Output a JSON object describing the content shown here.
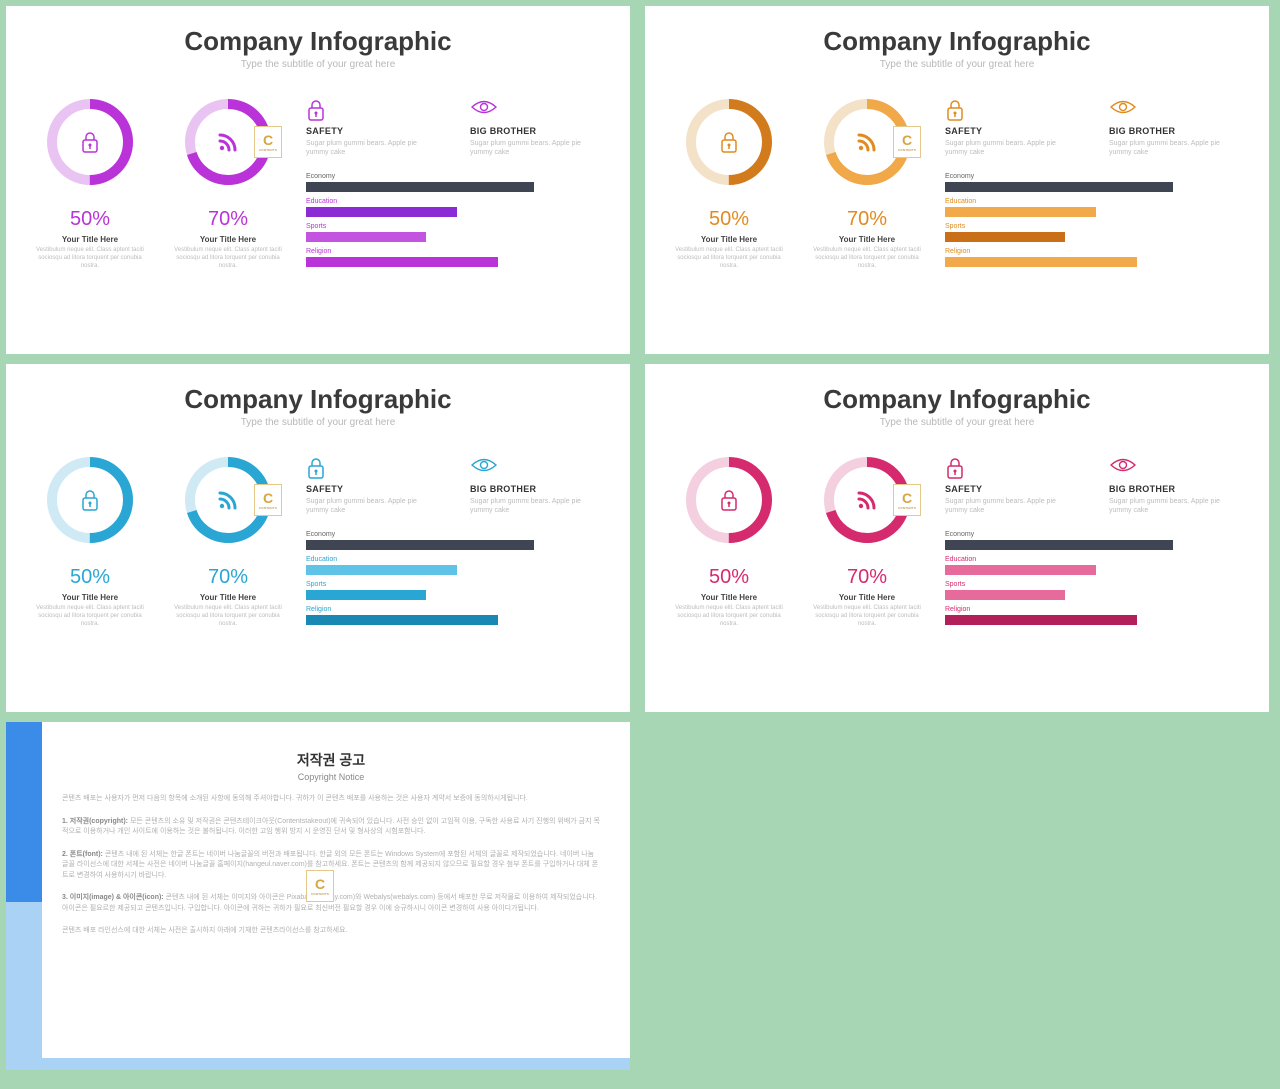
{
  "background_color": "#a6d6b4",
  "slide_title": "Company Infographic",
  "slide_subtitle": "Type the subtitle of your great here",
  "donut_caption": "Your Title Here",
  "donut_desc": "Vestibulum neque elit. Class aptent taciti sociosqu ad litora torquent per conubia nostra.",
  "safety": {
    "title": "SAFETY",
    "desc": "Sugar plum gummi bears. Apple pie yummy cake"
  },
  "bigbrother": {
    "title": "BIG BROTHER",
    "desc": "Sugar plum gummi bears. Apple pie yummy cake"
  },
  "donut_values": {
    "a": 50,
    "b": 70
  },
  "bar_categories": [
    "Economy",
    "Education",
    "Sports",
    "Religion"
  ],
  "bar_values": [
    95,
    63,
    50,
    80
  ],
  "bar_label_color": "#8a8a8a",
  "dark_bar_color": "#3f4553",
  "variants": [
    {
      "accent": "#b933d9",
      "accent_light": "#e9c4f2",
      "donut_colors": {
        "a": "#b933d9",
        "b": "#b933d9"
      },
      "pct_color": "#b933d9",
      "bar_colors": [
        "#3f4553",
        "#8a2bd6",
        "#c254e0",
        "#b933d9"
      ]
    },
    {
      "accent": "#e08b1f",
      "accent_light": "#f4e2c8",
      "donut_colors": {
        "a": "#d27b1c",
        "b": "#f0a848"
      },
      "pct_color": "#e08b1f",
      "bar_colors": [
        "#3f4553",
        "#f2a94c",
        "#c96f18",
        "#f2a94c"
      ]
    },
    {
      "accent": "#2aa6d4",
      "accent_light": "#cfeaf4",
      "donut_colors": {
        "a": "#2aa6d4",
        "b": "#2aa6d4"
      },
      "pct_color": "#2aa6d4",
      "bar_colors": [
        "#3f4553",
        "#5ec3e6",
        "#2aa6d4",
        "#1988b3"
      ]
    },
    {
      "accent": "#d62a6e",
      "accent_light": "#f4cfe0",
      "donut_colors": {
        "a": "#d62a6e",
        "b": "#d62a6e"
      },
      "pct_color": "#d62a6e",
      "bar_colors": [
        "#3f4553",
        "#e66a9b",
        "#e66a9b",
        "#b31f5a"
      ]
    }
  ],
  "copyright": {
    "title": "저작권 공고",
    "subtitle": "Copyright Notice",
    "p1": "콘텐츠 배포는 사용자가 먼저 다음의 항목에 소개된 사항에 동의해 주셔야합니다. 귀하가 이 콘텐츠 배포를 사용하는 것은 사용자 계약서 보증에 동의하시게됩니다.",
    "p2_head": "1. 저작권(copyright):",
    "p2": " 모든 콘텐츠의 소유 및 저작권은 콘텐츠테이크아웃(Contentstakeout)에 귀속되어 있습니다. 사전 승인 없이 고임적 이용, 구독한 사용료 사기 진행의 위배가 금지 목적으로 이용하거나 개인 사이트에 이용하는 것은 불허됩니다. 이러한 고임 행위 방지 시 운영진 단서 및 형사상의 시험포함니다.",
    "p3_head": "2. 폰트(font):",
    "p3": " 콘텐츠 내에 된 서체는 한글 폰트는 네이버 나눔글꼴의 버전과 배포됩니다. 한글 외의 모든 폰트는 Windows System에 포함된 서체의 글꼴로 제작되었습니다. 네이버 나눔글꼴 라이선스에 대한 서체는 사전은 네이버 나눔글꼴 홈페이지(hangeul.naver.com)를 참고하세요. 폰트는 콘텐츠의 함께 제공되지 않으므로 필요할 경우 첨부 폰트를 구입하거나 대체 폰트로 변경하여 사용하시기 바랍니다.",
    "p4_head": "3. 이미지(image) & 아이콘(icon):",
    "p4": " 콘텐츠 내에 된 서체는 이미지와 아이콘은 Pixabay(pixabay.com)와 Webalys(webalys.com) 등에서 배포한 무료 저작물로 이용하여 제작되었습니다. 아이콘은 필요르한 제공되고 콘텐츠입니다. 구입합니다. 아이콘에 귀하는 귀하가 필요로 최신버전 필요할 경우 이에 승규하시니 아이콘 변경하여 사용 아이디가됩니다.",
    "p5": "콘텐츠 배포 라인선스에 대한 서체는 사전은 출시하지 아래에 기재한 콘텐츠라이선스를 참고하세요."
  }
}
